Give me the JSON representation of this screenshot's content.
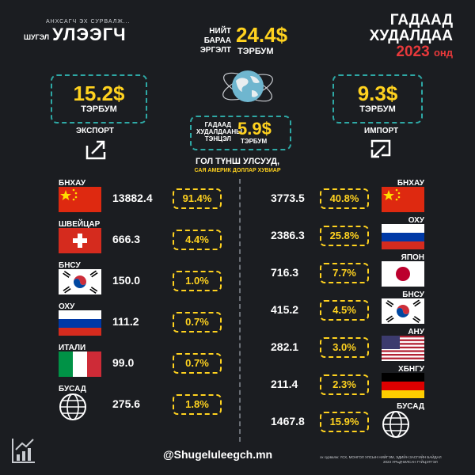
{
  "header": {
    "logo_small_top": "АНХСАГЧ ЭХ СУРВАЛЖ...",
    "logo_prefix": "ШУГЭЛ",
    "logo_main": "УЛЭЭГЧ",
    "total_line1": "НИЙТ",
    "total_line2": "БАРАА",
    "total_line3": "ЭРГЭЛТ",
    "total_value": "24.4$",
    "total_unit": "ТЭРБУМ",
    "title_line1": "ГАДААД",
    "title_line2": "ХУДАЛДАА",
    "title_year": "2023",
    "title_suffix": "онд"
  },
  "export": {
    "value": "15.2$",
    "unit": "ТЭРБУМ",
    "label": "ЭКСПОРТ"
  },
  "import": {
    "value": "9.3$",
    "unit": "ТЭРБУМ",
    "label": "ИМПОРТ"
  },
  "balance": {
    "line1": "ГАДААД",
    "line2": "ХУДАЛДААНЫ",
    "line3": "ТЭНЦЭЛ",
    "value": "5.9$",
    "unit": "ТЭРБУМ"
  },
  "partners": {
    "title": "ГОЛ ТҮНШ УЛСУУД,",
    "subtitle": "САЯ АМЕРИК ДОЛЛАР ХУВИАР"
  },
  "export_rows": [
    {
      "country": "БНХАУ",
      "value": "13882.4",
      "pct": "91.4%",
      "flag": "china"
    },
    {
      "country": "ШВЕЙЦАР",
      "value": "666.3",
      "pct": "4.4%",
      "flag": "switzerland"
    },
    {
      "country": "БНСУ",
      "value": "150.0",
      "pct": "1.0%",
      "flag": "korea"
    },
    {
      "country": "ОХУ",
      "value": "111.2",
      "pct": "0.7%",
      "flag": "russia"
    },
    {
      "country": "ИТАЛИ",
      "value": "99.0",
      "pct": "0.7%",
      "flag": "italy"
    },
    {
      "country": "БУСАД",
      "value": "275.6",
      "pct": "1.8%",
      "flag": "globe"
    }
  ],
  "import_rows": [
    {
      "country": "БНХАУ",
      "value": "3773.5",
      "pct": "40.8%",
      "flag": "china"
    },
    {
      "country": "ОХУ",
      "value": "2386.3",
      "pct": "25.8%",
      "flag": "russia"
    },
    {
      "country": "ЯПОН",
      "value": "716.3",
      "pct": "7.7%",
      "flag": "japan"
    },
    {
      "country": "БНСУ",
      "value": "415.2",
      "pct": "4.5%",
      "flag": "korea"
    },
    {
      "country": "АНУ",
      "value": "282.1",
      "pct": "3.0%",
      "flag": "usa"
    },
    {
      "country": "ХБНГУ",
      "value": "211.4",
      "pct": "2.3%",
      "flag": "germany"
    },
    {
      "country": "БУСАД",
      "value": "1467.8",
      "pct": "15.9%",
      "flag": "globe"
    }
  ],
  "footer": {
    "handle": "@Shugeluleegch.mn",
    "source_line1": "эх сурвалж: ҮСХ, МОНГОЛ УЛСЫН НИЙГЭМ, ЭДИЙН ЗАСГИЙН БАЙДАЛ",
    "source_line2": "2023 УРЬДЧИЛСАН ГҮЙЦЭТГЭЛ"
  },
  "colors": {
    "accent": "#ffd21f",
    "teal": "#2ea8a5",
    "red": "#e8393b",
    "background": "#1b1d21"
  }
}
